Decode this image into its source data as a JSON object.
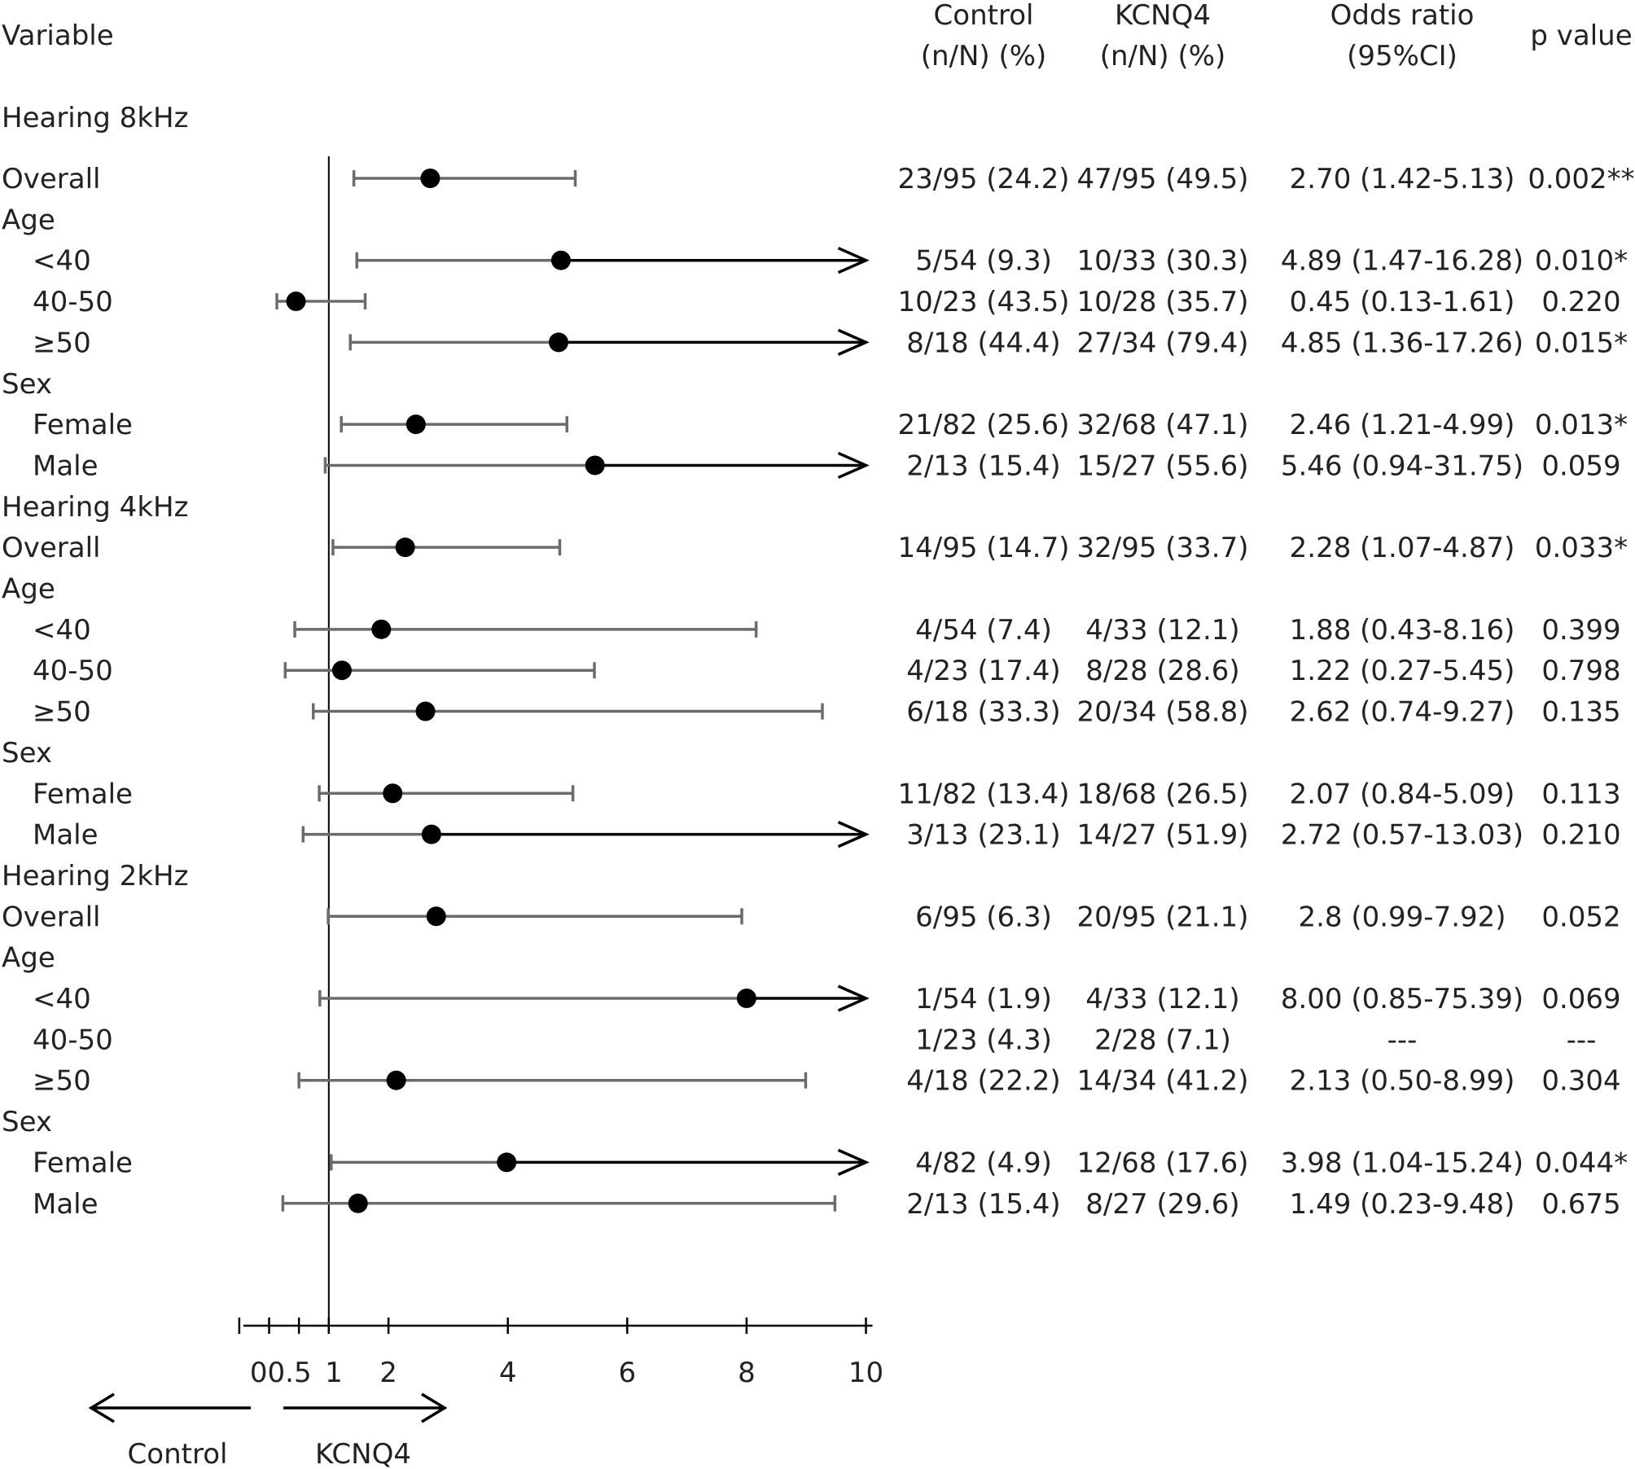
{
  "chart_data": {
    "type": "forest",
    "x_axis": {
      "range": [
        -0.5,
        10
      ],
      "ticks": [
        -0.5,
        0,
        0.5,
        1,
        2,
        4,
        6,
        8,
        10
      ],
      "tick_labels": [
        {
          "label": "0",
          "at": 0
        },
        {
          "label": "0.5",
          "at": 0.5
        },
        {
          "label": "1",
          "at": 1
        },
        {
          "label": "2",
          "at": 2
        },
        {
          "label": "4",
          "at": 4
        },
        {
          "label": "6",
          "at": 6
        },
        {
          "label": "8",
          "at": 8
        },
        {
          "label": "10",
          "at": 10
        }
      ],
      "reference_line": 1
    },
    "columns": {
      "variable": "Variable",
      "control": [
        "Control",
        "(n/N) (%)"
      ],
      "kcnq4": [
        "KCNQ4",
        "(n/N) (%)"
      ],
      "or": [
        "Odds ratio",
        "(95%CI)"
      ],
      "p": "p value"
    },
    "direction": {
      "left": "Control",
      "right": "KCNQ4"
    },
    "rows": [
      {
        "kind": "section",
        "label": "Hearing 8kHz"
      },
      {
        "kind": "data",
        "label": "Overall",
        "indent": 0,
        "or": 2.7,
        "lo": 1.42,
        "hi": 5.13,
        "control": "23/95 (24.2)",
        "kcnq4": "47/95 (49.5)",
        "or_text": "2.70 (1.42-5.13)",
        "p": "0.002**"
      },
      {
        "kind": "group",
        "label": "Age"
      },
      {
        "kind": "data",
        "label": "<40",
        "indent": 1,
        "or": 4.89,
        "lo": 1.47,
        "hi": 16.28,
        "control": "5/54 (9.3)",
        "kcnq4": "10/33 (30.3)",
        "or_text": "4.89 (1.47-16.28)",
        "p": "0.010*"
      },
      {
        "kind": "data",
        "label": "40-50",
        "indent": 1,
        "or": 0.45,
        "lo": 0.13,
        "hi": 1.61,
        "control": "10/23 (43.5)",
        "kcnq4": "10/28 (35.7)",
        "or_text": "0.45 (0.13-1.61)",
        "p": "0.220"
      },
      {
        "kind": "data",
        "label": "≥50",
        "indent": 1,
        "or": 4.85,
        "lo": 1.36,
        "hi": 17.26,
        "control": "8/18 (44.4)",
        "kcnq4": "27/34 (79.4)",
        "or_text": "4.85 (1.36-17.26)",
        "p": "0.015*"
      },
      {
        "kind": "group",
        "label": "Sex"
      },
      {
        "kind": "data",
        "label": "Female",
        "indent": 1,
        "or": 2.46,
        "lo": 1.21,
        "hi": 4.99,
        "control": "21/82 (25.6)",
        "kcnq4": "32/68 (47.1)",
        "or_text": "2.46 (1.21-4.99)",
        "p": "0.013*"
      },
      {
        "kind": "data",
        "label": "Male",
        "indent": 1,
        "or": 5.46,
        "lo": 0.94,
        "hi": 31.75,
        "control": "2/13 (15.4)",
        "kcnq4": "15/27 (55.6)",
        "or_text": "5.46 (0.94-31.75)",
        "p": "0.059"
      },
      {
        "kind": "section",
        "label": "Hearing 4kHz"
      },
      {
        "kind": "data",
        "label": "Overall",
        "indent": 0,
        "or": 2.28,
        "lo": 1.07,
        "hi": 4.87,
        "control": "14/95 (14.7)",
        "kcnq4": "32/95 (33.7)",
        "or_text": "2.28 (1.07-4.87)",
        "p": "0.033*"
      },
      {
        "kind": "group",
        "label": "Age"
      },
      {
        "kind": "data",
        "label": "<40",
        "indent": 1,
        "or": 1.88,
        "lo": 0.43,
        "hi": 8.16,
        "control": "4/54 (7.4)",
        "kcnq4": "4/33 (12.1)",
        "or_text": "1.88 (0.43-8.16)",
        "p": "0.399"
      },
      {
        "kind": "data",
        "label": "40-50",
        "indent": 1,
        "or": 1.22,
        "lo": 0.27,
        "hi": 5.45,
        "control": "4/23 (17.4)",
        "kcnq4": "8/28 (28.6)",
        "or_text": "1.22 (0.27-5.45)",
        "p": "0.798"
      },
      {
        "kind": "data",
        "label": "≥50",
        "indent": 1,
        "or": 2.62,
        "lo": 0.74,
        "hi": 9.27,
        "control": "6/18 (33.3)",
        "kcnq4": "20/34 (58.8)",
        "or_text": "2.62 (0.74-9.27)",
        "p": "0.135"
      },
      {
        "kind": "group",
        "label": "Sex"
      },
      {
        "kind": "data",
        "label": "Female",
        "indent": 1,
        "or": 2.07,
        "lo": 0.84,
        "hi": 5.09,
        "control": "11/82 (13.4)",
        "kcnq4": "18/68 (26.5)",
        "or_text": "2.07 (0.84-5.09)",
        "p": "0.113"
      },
      {
        "kind": "data",
        "label": "Male",
        "indent": 1,
        "or": 2.72,
        "lo": 0.57,
        "hi": 13.03,
        "control": "3/13 (23.1)",
        "kcnq4": "14/27 (51.9)",
        "or_text": "2.72 (0.57-13.03)",
        "p": "0.210"
      },
      {
        "kind": "section",
        "label": "Hearing 2kHz"
      },
      {
        "kind": "data",
        "label": "Overall",
        "indent": 0,
        "or": 2.8,
        "lo": 0.99,
        "hi": 7.92,
        "control": "6/95 (6.3)",
        "kcnq4": "20/95 (21.1)",
        "or_text": "2.8 (0.99-7.92)",
        "p": "0.052"
      },
      {
        "kind": "group",
        "label": "Age"
      },
      {
        "kind": "data",
        "label": "<40",
        "indent": 1,
        "or": 8.0,
        "lo": 0.85,
        "hi": 75.39,
        "control": "1/54 (1.9)",
        "kcnq4": "4/33 (12.1)",
        "or_text": "8.00 (0.85-75.39)",
        "p": "0.069"
      },
      {
        "kind": "data",
        "label": "40-50",
        "indent": 1,
        "or": null,
        "lo": null,
        "hi": null,
        "control": "1/23 (4.3)",
        "kcnq4": "2/28 (7.1)",
        "or_text": "---",
        "p": "---"
      },
      {
        "kind": "data",
        "label": "≥50",
        "indent": 1,
        "or": 2.13,
        "lo": 0.5,
        "hi": 8.99,
        "control": "4/18 (22.2)",
        "kcnq4": "14/34 (41.2)",
        "or_text": "2.13 (0.50-8.99)",
        "p": "0.304"
      },
      {
        "kind": "group",
        "label": "Sex"
      },
      {
        "kind": "data",
        "label": "Female",
        "indent": 1,
        "or": 3.98,
        "lo": 1.04,
        "hi": 15.24,
        "control": "4/82 (4.9)",
        "kcnq4": "12/68 (17.6)",
        "or_text": "3.98 (1.04-15.24)",
        "p": "0.044*"
      },
      {
        "kind": "data",
        "label": "Male",
        "indent": 1,
        "or": 1.49,
        "lo": 0.23,
        "hi": 9.48,
        "control": "2/13 (15.4)",
        "kcnq4": "8/27 (29.6)",
        "or_text": "1.49 (0.23-9.48)",
        "p": "0.675"
      }
    ]
  }
}
